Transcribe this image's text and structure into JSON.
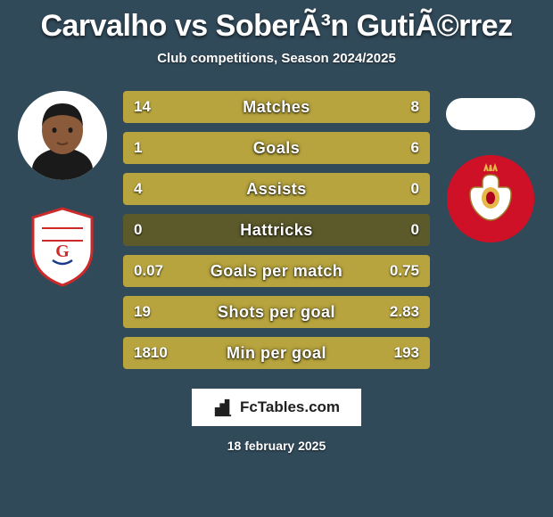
{
  "background_color": "#314a5a",
  "text_color": "#ffffff",
  "title": "Carvalho vs SoberÃ³n GutiÃ©rrez",
  "subtitle": "Club competitions, Season 2024/2025",
  "date": "18 february 2025",
  "brand": "FcTables.com",
  "bar_track_color": "#5c5a2b",
  "bar_left_color": "#b7a43e",
  "bar_right_color": "#b7a43e",
  "stats": [
    {
      "label": "Matches",
      "left_text": "14",
      "right_text": "8",
      "left_pct": 63.6,
      "right_pct": 36.4
    },
    {
      "label": "Goals",
      "left_text": "1",
      "right_text": "6",
      "left_pct": 14.3,
      "right_pct": 85.7
    },
    {
      "label": "Assists",
      "left_text": "4",
      "right_text": "0",
      "left_pct": 100,
      "right_pct": 0
    },
    {
      "label": "Hattricks",
      "left_text": "0",
      "right_text": "0",
      "left_pct": 0,
      "right_pct": 0
    },
    {
      "label": "Goals per match",
      "left_text": "0.07",
      "right_text": "0.75",
      "left_pct": 8.5,
      "right_pct": 91.5
    },
    {
      "label": "Shots per goal",
      "left_text": "19",
      "right_text": "2.83",
      "left_pct": 87.0,
      "right_pct": 13.0
    },
    {
      "label": "Min per goal",
      "left_text": "1810",
      "right_text": "193",
      "left_pct": 90.4,
      "right_pct": 9.6
    }
  ],
  "left_club": {
    "shield_bg": "#ffffff",
    "shield_border": "#cc2a2a",
    "shield_accent": "#1a3a8a"
  },
  "right_club": {
    "circle_bg": "#ce1126",
    "crest_gold": "#e6b84a",
    "crest_red": "#b00020"
  },
  "player_skin": "#8a5a3a",
  "player_hair": "#1a1a1a"
}
